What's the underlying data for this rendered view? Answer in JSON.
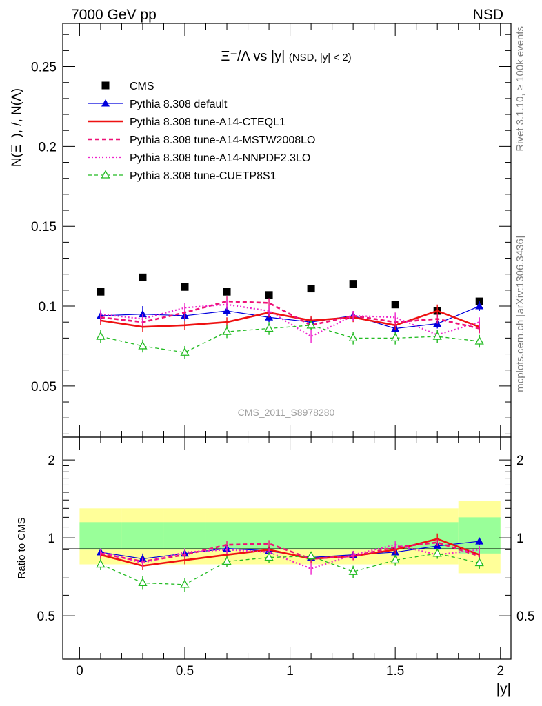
{
  "header": {
    "left": "7000 GeV pp",
    "right": "NSD"
  },
  "side_labels": {
    "rivet": "Rivet 3.1.10, ≥ 100k events",
    "mcplots": "mcplots.cern.ch [arXiv:1306.3436]"
  },
  "watermark": "CMS_2011_S8978280",
  "colors": {
    "cms": "#000000",
    "default": "#0000dd",
    "cteql1": "#ee1111",
    "mstw": "#ee1177",
    "nnpdf": "#ee22cc",
    "cuetp8s1": "#22bb22",
    "band_yellow": "#ffff99",
    "band_green": "#99ff99"
  },
  "chart_data": [
    {
      "type": "scatter",
      "title_main": "Ξ⁻/Λ vs |y|",
      "title_sub": "(NSD, |y| < 2)",
      "ylabel": "N(Ξ⁻), /, N(Λ)",
      "xlim": [
        -0.08,
        2.05
      ],
      "ylim": [
        0.018,
        0.277
      ],
      "x_ticks": [
        0,
        0.5,
        1,
        1.5,
        2
      ],
      "y_ticks": [
        {
          "value": 0.05,
          "label": "0.05"
        },
        {
          "value": 0.1,
          "label": "0.1"
        },
        {
          "value": 0.15,
          "label": "0.15"
        },
        {
          "value": 0.2,
          "label": "0.2"
        },
        {
          "value": 0.25,
          "label": "0.25"
        }
      ],
      "legend_position": "top-left",
      "x": [
        0.1,
        0.3,
        0.5,
        0.7,
        0.9,
        1.1,
        1.3,
        1.5,
        1.7,
        1.9
      ],
      "series": [
        {
          "key": "cms",
          "name": "CMS",
          "style": "data",
          "values": [
            0.109,
            0.118,
            0.112,
            0.109,
            0.107,
            0.111,
            0.114,
            0.101,
            0.097,
            0.103
          ],
          "errors": [
            0,
            0,
            0,
            0,
            0,
            0,
            0,
            0,
            0,
            0
          ]
        },
        {
          "key": "default",
          "name": "Pythia 8.308 default",
          "style": "default",
          "values": [
            0.094,
            0.095,
            0.094,
            0.097,
            0.093,
            0.09,
            0.094,
            0.086,
            0.089,
            0.1
          ],
          "errors": [
            0.003,
            0.005,
            0.003,
            0.003,
            0.003,
            0.003,
            0.003,
            0.003,
            0.003,
            0.003
          ]
        },
        {
          "key": "cteql1",
          "name": "Pythia 8.308 tune-A14-CTEQL1",
          "style": "cteql1",
          "values": [
            0.091,
            0.087,
            0.088,
            0.09,
            0.096,
            0.091,
            0.093,
            0.088,
            0.097,
            0.087
          ],
          "errors": [
            0.003,
            0.003,
            0.003,
            0.003,
            0.003,
            0.003,
            0.003,
            0.003,
            0.004,
            0.003
          ]
        },
        {
          "key": "mstw",
          "name": "Pythia 8.308 tune-A14-MSTW2008LO",
          "style": "mstw",
          "values": [
            0.093,
            0.09,
            0.096,
            0.103,
            0.102,
            0.088,
            0.094,
            0.09,
            0.092,
            0.086
          ],
          "errors": [
            0.003,
            0.003,
            0.004,
            0.003,
            0.003,
            0.003,
            0.003,
            0.003,
            0.003,
            0.003
          ]
        },
        {
          "key": "nnpdf",
          "name": "Pythia 8.308 tune-A14-NNPDF2.3LO",
          "style": "nnpdf",
          "values": [
            0.095,
            0.092,
            0.099,
            0.101,
            0.097,
            0.081,
            0.094,
            0.093,
            0.082,
            0.09
          ],
          "errors": [
            0.003,
            0.003,
            0.003,
            0.003,
            0.003,
            0.004,
            0.003,
            0.003,
            0.003,
            0.003
          ]
        },
        {
          "key": "cuetp8s1",
          "name": "Pythia 8.308 tune-CUETP8S1",
          "style": "cuetp8s1",
          "values": [
            0.081,
            0.075,
            0.071,
            0.084,
            0.086,
            0.088,
            0.08,
            0.08,
            0.081,
            0.078
          ],
          "errors": [
            0.004,
            0.004,
            0.004,
            0.004,
            0.004,
            0.003,
            0.004,
            0.004,
            0.004,
            0.004
          ]
        }
      ]
    },
    {
      "type": "line",
      "ylabel": "Ratio to CMS",
      "xlabel": "|y|",
      "xlim": [
        -0.08,
        2.05
      ],
      "ylim": [
        0.34,
        2.45
      ],
      "scale": "log",
      "x_ticks": [
        {
          "value": 0,
          "label": "0"
        },
        {
          "value": 0.5,
          "label": "0.5"
        },
        {
          "value": 1,
          "label": "1"
        },
        {
          "value": 1.5,
          "label": "1.5"
        },
        {
          "value": 2,
          "label": "2"
        }
      ],
      "y_ticks": [
        {
          "value": 0.5,
          "label": "0.5"
        },
        {
          "value": 1,
          "label": "1"
        },
        {
          "value": 2,
          "label": "2"
        }
      ],
      "bands": {
        "edges": [
          0,
          0.2,
          0.4,
          0.6,
          0.8,
          1.0,
          1.2,
          1.4,
          1.6,
          1.8,
          2.0
        ],
        "yellow_low": [
          0.79,
          0.79,
          0.79,
          0.79,
          0.79,
          0.79,
          0.79,
          0.79,
          0.79,
          0.73
        ],
        "yellow_high": [
          1.3,
          1.3,
          1.3,
          1.3,
          1.3,
          1.3,
          1.3,
          1.3,
          1.3,
          1.39
        ],
        "green_low": [
          0.9,
          0.9,
          0.9,
          0.9,
          0.9,
          0.9,
          0.9,
          0.9,
          0.9,
          0.87
        ],
        "green_high": [
          1.15,
          1.15,
          1.15,
          1.15,
          1.15,
          1.15,
          1.15,
          1.15,
          1.15,
          1.2
        ]
      },
      "x": [
        0.1,
        0.3,
        0.5,
        0.7,
        0.9,
        1.1,
        1.3,
        1.5,
        1.7,
        1.9
      ],
      "series": [
        {
          "key": "default",
          "style": "default",
          "values": [
            0.88,
            0.83,
            0.87,
            0.91,
            0.89,
            0.84,
            0.86,
            0.88,
            0.93,
            0.97
          ],
          "errors": [
            0.03,
            0.04,
            0.03,
            0.03,
            0.03,
            0.03,
            0.03,
            0.03,
            0.03,
            0.03
          ]
        },
        {
          "key": "cteql1",
          "style": "cteql1",
          "values": [
            0.86,
            0.78,
            0.82,
            0.86,
            0.9,
            0.83,
            0.85,
            0.9,
            0.99,
            0.86
          ],
          "errors": [
            0.03,
            0.03,
            0.03,
            0.03,
            0.03,
            0.03,
            0.03,
            0.03,
            0.05,
            0.03
          ]
        },
        {
          "key": "mstw",
          "style": "mstw",
          "values": [
            0.87,
            0.81,
            0.86,
            0.94,
            0.95,
            0.83,
            0.85,
            0.92,
            0.96,
            0.85
          ],
          "errors": [
            0.03,
            0.03,
            0.03,
            0.03,
            0.03,
            0.03,
            0.03,
            0.03,
            0.03,
            0.03
          ]
        },
        {
          "key": "nnpdf",
          "style": "nnpdf",
          "values": [
            0.88,
            0.8,
            0.88,
            0.9,
            0.88,
            0.76,
            0.86,
            0.94,
            0.86,
            0.9
          ],
          "errors": [
            0.03,
            0.03,
            0.03,
            0.03,
            0.03,
            0.04,
            0.03,
            0.03,
            0.03,
            0.03
          ]
        },
        {
          "key": "cuetp8s1",
          "style": "cuetp8s1",
          "values": [
            0.79,
            0.67,
            0.66,
            0.81,
            0.84,
            0.85,
            0.74,
            0.82,
            0.87,
            0.8
          ],
          "errors": [
            0.04,
            0.04,
            0.04,
            0.04,
            0.04,
            0.03,
            0.04,
            0.04,
            0.04,
            0.04
          ]
        }
      ]
    }
  ]
}
